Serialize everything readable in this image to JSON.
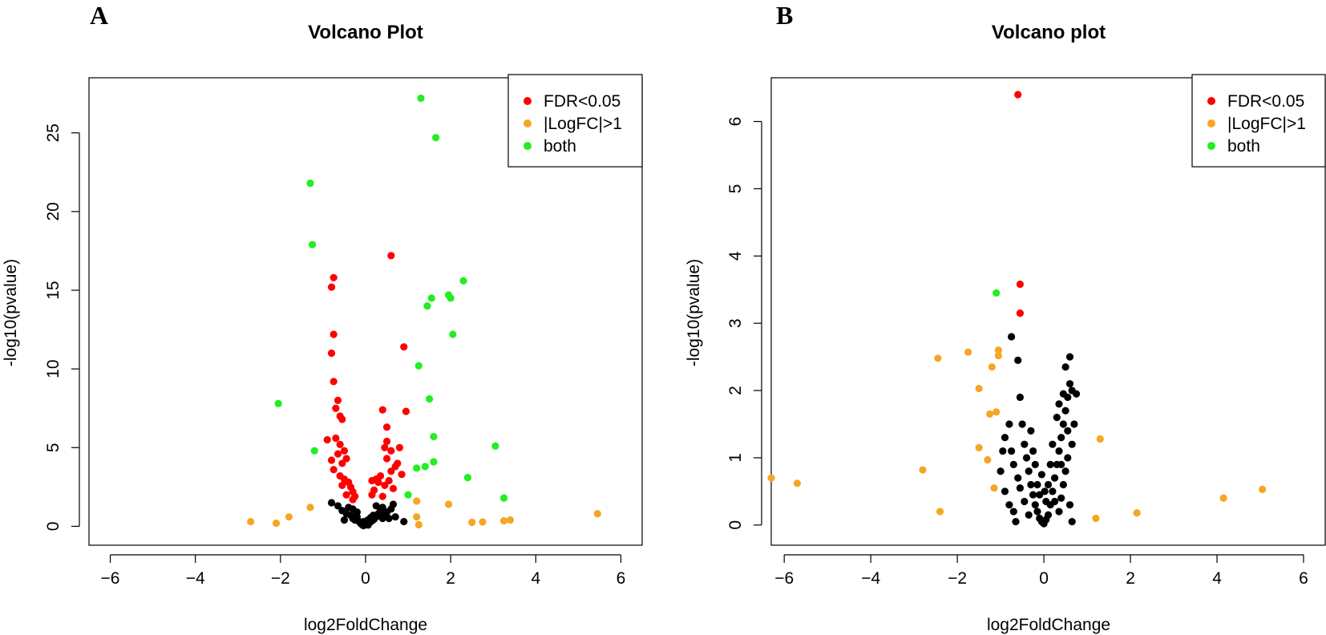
{
  "figure": {
    "panel_labels": [
      "A",
      "B"
    ],
    "colors": {
      "fdr": "#ff0000",
      "logfc": "#f5a623",
      "both": "#22ee22",
      "ns": "#000000"
    }
  },
  "chart_data": [
    {
      "type": "scatter",
      "panel": "A",
      "title": "Volcano Plot",
      "xlabel": "log2FoldChange",
      "ylabel": "-log10(pvalue)",
      "xlim": [
        -6.5,
        6.5
      ],
      "ylim": [
        -1.2,
        28.5
      ],
      "xticks": [
        -6,
        -4,
        -2,
        0,
        2,
        4,
        6
      ],
      "yticks": [
        0,
        5,
        10,
        15,
        20,
        25
      ],
      "legend": {
        "position": "top-right",
        "entries": [
          {
            "label": "FDR<0.05",
            "group": "fdr"
          },
          {
            "label": "|LogFC|>1",
            "group": "logfc"
          },
          {
            "label": "both",
            "group": "both"
          }
        ]
      },
      "series": [
        {
          "name": "ns",
          "points": [
            [
              -0.8,
              1.5
            ],
            [
              -0.65,
              1.3
            ],
            [
              -0.55,
              1.0
            ],
            [
              -0.45,
              0.8
            ],
            [
              -0.35,
              0.7
            ],
            [
              -0.3,
              0.5
            ],
            [
              -0.25,
              0.4
            ],
            [
              -0.2,
              0.6
            ],
            [
              -0.15,
              0.3
            ],
            [
              -0.12,
              0.2
            ],
            [
              -0.1,
              0.15
            ],
            [
              -0.08,
              0.1
            ],
            [
              -0.05,
              0.05
            ],
            [
              0.0,
              0.1
            ],
            [
              0.03,
              0.15
            ],
            [
              0.06,
              0.08
            ],
            [
              0.1,
              0.25
            ],
            [
              0.15,
              0.35
            ],
            [
              0.2,
              0.45
            ],
            [
              0.25,
              0.6
            ],
            [
              0.3,
              0.8
            ],
            [
              0.35,
              1.0
            ],
            [
              0.4,
              1.2
            ],
            [
              0.45,
              0.7
            ],
            [
              0.5,
              0.9
            ],
            [
              0.55,
              0.5
            ],
            [
              0.6,
              1.1
            ],
            [
              0.7,
              0.6
            ],
            [
              0.9,
              0.3
            ],
            [
              -0.4,
              1.2
            ],
            [
              -0.5,
              0.4
            ],
            [
              0.05,
              0.4
            ],
            [
              -0.2,
              0.9
            ],
            [
              0.25,
              1.3
            ],
            [
              0.65,
              1.4
            ],
            [
              -0.3,
              1.1
            ],
            [
              0.18,
              0.7
            ],
            [
              -0.05,
              0.3
            ],
            [
              0.12,
              0.55
            ],
            [
              0.4,
              0.5
            ]
          ]
        },
        {
          "name": "fdr",
          "points": [
            [
              0.6,
              17.2
            ],
            [
              -0.75,
              15.8
            ],
            [
              -0.8,
              15.2
            ],
            [
              -0.75,
              12.2
            ],
            [
              -0.8,
              11.0
            ],
            [
              -0.75,
              9.2
            ],
            [
              -0.65,
              8.0
            ],
            [
              -0.7,
              7.5
            ],
            [
              -0.6,
              7.0
            ],
            [
              -0.55,
              6.8
            ],
            [
              0.9,
              11.4
            ],
            [
              0.4,
              7.4
            ],
            [
              0.5,
              6.3
            ],
            [
              0.5,
              5.4
            ],
            [
              0.45,
              5.0
            ],
            [
              0.6,
              4.8
            ],
            [
              0.8,
              5.0
            ],
            [
              0.95,
              7.3
            ],
            [
              -0.9,
              5.5
            ],
            [
              -0.7,
              5.6
            ],
            [
              -0.6,
              5.2
            ],
            [
              -0.5,
              4.8
            ],
            [
              -0.45,
              4.3
            ],
            [
              -0.8,
              4.2
            ],
            [
              -0.75,
              3.6
            ],
            [
              -0.6,
              3.2
            ],
            [
              -0.5,
              3.0
            ],
            [
              -0.4,
              2.8
            ],
            [
              -0.35,
              2.5
            ],
            [
              -0.3,
              2.2
            ],
            [
              -0.55,
              2.6
            ],
            [
              -0.45,
              2.0
            ],
            [
              -0.3,
              1.7
            ],
            [
              0.2,
              2.3
            ],
            [
              0.3,
              2.8
            ],
            [
              0.35,
              3.2
            ],
            [
              0.45,
              2.6
            ],
            [
              0.55,
              2.9
            ],
            [
              0.6,
              3.5
            ],
            [
              0.7,
              3.8
            ],
            [
              0.75,
              4.0
            ],
            [
              0.85,
              3.3
            ],
            [
              0.4,
              1.9
            ],
            [
              0.15,
              2.0
            ],
            [
              -0.25,
              1.9
            ],
            [
              -0.65,
              4.6
            ],
            [
              -0.55,
              4.0
            ],
            [
              0.5,
              4.3
            ],
            [
              0.25,
              3.0
            ],
            [
              0.15,
              2.9
            ],
            [
              0.65,
              2.4
            ]
          ]
        },
        {
          "name": "logfc",
          "points": [
            [
              -2.7,
              0.3
            ],
            [
              -2.1,
              0.2
            ],
            [
              -1.8,
              0.6
            ],
            [
              -1.3,
              1.2
            ],
            [
              1.2,
              1.6
            ],
            [
              1.2,
              0.6
            ],
            [
              1.25,
              0.1
            ],
            [
              1.95,
              1.4
            ],
            [
              2.5,
              0.25
            ],
            [
              2.75,
              0.28
            ],
            [
              3.25,
              0.35
            ],
            [
              3.4,
              0.4
            ],
            [
              5.45,
              0.8
            ]
          ]
        },
        {
          "name": "both",
          "points": [
            [
              1.3,
              27.2
            ],
            [
              1.65,
              24.7
            ],
            [
              -1.3,
              21.8
            ],
            [
              -1.25,
              17.9
            ],
            [
              2.3,
              15.6
            ],
            [
              1.95,
              14.7
            ],
            [
              2.0,
              14.5
            ],
            [
              1.55,
              14.5
            ],
            [
              1.45,
              14.0
            ],
            [
              2.05,
              12.2
            ],
            [
              1.25,
              10.2
            ],
            [
              -2.05,
              7.8
            ],
            [
              1.5,
              8.1
            ],
            [
              1.6,
              5.7
            ],
            [
              3.05,
              5.1
            ],
            [
              -1.2,
              4.8
            ],
            [
              1.6,
              4.1
            ],
            [
              1.4,
              3.8
            ],
            [
              1.2,
              3.7
            ],
            [
              2.4,
              3.1
            ],
            [
              1.0,
              2.0
            ],
            [
              3.25,
              1.8
            ]
          ]
        }
      ]
    },
    {
      "type": "scatter",
      "panel": "B",
      "title": "Volcano plot",
      "xlabel": "log2FoldChange",
      "ylabel": "-log10(pvalue)",
      "xlim": [
        -6.3,
        6.5
      ],
      "ylim": [
        -0.3,
        6.65
      ],
      "xticks": [
        -6,
        -4,
        -2,
        0,
        2,
        4,
        6
      ],
      "yticks": [
        0,
        1,
        2,
        3,
        4,
        5,
        6
      ],
      "legend": {
        "position": "top-right",
        "entries": [
          {
            "label": "FDR<0.05",
            "group": "fdr"
          },
          {
            "label": "|LogFC|>1",
            "group": "logfc"
          },
          {
            "label": "both",
            "group": "both"
          }
        ]
      },
      "series": [
        {
          "name": "ns",
          "points": [
            [
              -0.75,
              2.8
            ],
            [
              -0.6,
              2.45
            ],
            [
              -0.55,
              1.9
            ],
            [
              -0.5,
              1.5
            ],
            [
              -0.45,
              1.2
            ],
            [
              -0.4,
              1.0
            ],
            [
              -0.35,
              0.8
            ],
            [
              -0.3,
              0.6
            ],
            [
              -0.25,
              0.45
            ],
            [
              -0.2,
              0.3
            ],
            [
              -0.15,
              0.2
            ],
            [
              -0.1,
              0.1
            ],
            [
              -0.05,
              0.05
            ],
            [
              0.0,
              0.02
            ],
            [
              0.05,
              0.08
            ],
            [
              0.1,
              0.15
            ],
            [
              0.15,
              0.3
            ],
            [
              0.2,
              0.5
            ],
            [
              0.25,
              0.7
            ],
            [
              0.3,
              0.9
            ],
            [
              0.35,
              1.1
            ],
            [
              0.4,
              1.3
            ],
            [
              0.45,
              1.5
            ],
            [
              0.5,
              1.7
            ],
            [
              0.55,
              1.9
            ],
            [
              0.6,
              2.1
            ],
            [
              0.65,
              2.0
            ],
            [
              0.75,
              1.95
            ],
            [
              0.6,
              2.5
            ],
            [
              0.5,
              2.35
            ],
            [
              0.7,
              1.5
            ],
            [
              0.65,
              1.2
            ],
            [
              0.55,
              1.0
            ],
            [
              0.5,
              0.8
            ],
            [
              0.45,
              0.6
            ],
            [
              0.4,
              0.4
            ],
            [
              0.35,
              0.2
            ],
            [
              0.6,
              0.3
            ],
            [
              0.65,
              0.05
            ],
            [
              -0.9,
              1.3
            ],
            [
              -0.95,
              1.1
            ],
            [
              -1.0,
              0.8
            ],
            [
              -0.9,
              0.5
            ],
            [
              -0.8,
              0.3
            ],
            [
              -0.7,
              0.2
            ],
            [
              -0.65,
              0.05
            ],
            [
              -0.6,
              0.7
            ],
            [
              -0.7,
              0.9
            ],
            [
              -0.8,
              1.5
            ],
            [
              -0.75,
              1.1
            ],
            [
              -0.55,
              0.55
            ],
            [
              -0.45,
              0.35
            ],
            [
              -0.3,
              1.4
            ],
            [
              -0.25,
              1.1
            ],
            [
              -0.2,
              0.9
            ],
            [
              0.1,
              0.6
            ],
            [
              0.15,
              0.9
            ],
            [
              0.2,
              1.2
            ],
            [
              0.3,
              1.6
            ],
            [
              0.35,
              1.8
            ],
            [
              0.4,
              0.9
            ],
            [
              0.25,
              0.35
            ],
            [
              -0.1,
              0.45
            ],
            [
              -0.05,
              0.75
            ],
            [
              0.05,
              0.35
            ],
            [
              -0.35,
              0.15
            ],
            [
              0.55,
              1.4
            ],
            [
              0.45,
              1.95
            ],
            [
              -0.15,
              0.6
            ],
            [
              0.02,
              0.5
            ]
          ]
        },
        {
          "name": "fdr",
          "points": [
            [
              -0.6,
              6.4
            ],
            [
              -0.55,
              3.58
            ],
            [
              -0.55,
              3.15
            ]
          ]
        },
        {
          "name": "logfc",
          "points": [
            [
              -6.3,
              0.7
            ],
            [
              -5.7,
              0.62
            ],
            [
              -2.8,
              0.82
            ],
            [
              -2.45,
              2.48
            ],
            [
              -2.4,
              0.2
            ],
            [
              -1.75,
              2.57
            ],
            [
              -1.5,
              2.03
            ],
            [
              -1.5,
              1.15
            ],
            [
              -1.3,
              0.97
            ],
            [
              -1.25,
              1.65
            ],
            [
              -1.2,
              2.35
            ],
            [
              -1.15,
              0.55
            ],
            [
              -1.1,
              1.68
            ],
            [
              -1.05,
              2.6
            ],
            [
              -1.05,
              2.52
            ],
            [
              1.2,
              0.1
            ],
            [
              1.3,
              1.28
            ],
            [
              2.15,
              0.18
            ],
            [
              4.15,
              0.4
            ],
            [
              5.05,
              0.53
            ]
          ]
        },
        {
          "name": "both",
          "points": [
            [
              -1.1,
              3.45
            ]
          ]
        }
      ]
    }
  ]
}
